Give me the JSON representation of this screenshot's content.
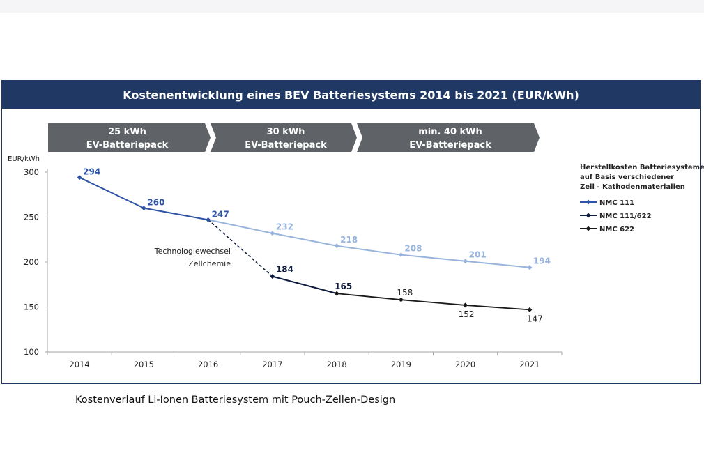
{
  "title": "Kostenentwicklung eines BEV Batteriesystems 2014 bis 2021 (EUR/kWh)",
  "caption": "Kostenverlauf Li-Ionen Batteriesystem mit Pouch-Zellen-Design",
  "colors": {
    "title_bg": "#1f3864",
    "chevron": "#5f6368",
    "nmc111": "#2e54a6",
    "nmc111_622": "#0f1c3d",
    "nmc622": "#1a1a1a",
    "light_series": "#98b4dc",
    "axis": "#a6a6a6"
  },
  "chevrons": [
    {
      "line1": "25 kWh",
      "line2": "EV-Batteriepack"
    },
    {
      "line1": "30 kWh",
      "line2": "EV-Batteriepack"
    },
    {
      "line1": "min. 40 kWh",
      "line2": "EV-Batteriepack"
    }
  ],
  "annotation": {
    "line1": "Technologiewechsel",
    "line2": "Zellchemie"
  },
  "legend": {
    "title_lines": [
      "Herstellkosten Batteriesysteme",
      " auf Basis verschiedener",
      "Zell - Kathodenmaterialien"
    ],
    "items": [
      "NMC 111",
      "NMC 111/622",
      "NMC 622"
    ]
  },
  "chart_data": {
    "type": "line",
    "ylabel": "EUR/kWh",
    "ylim": [
      100,
      300
    ],
    "yticks": [
      100,
      150,
      200,
      250,
      300
    ],
    "categories": [
      "2014",
      "2015",
      "2016",
      "2017",
      "2018",
      "2019",
      "2020",
      "2021"
    ],
    "series": [
      {
        "name": "NMC 111",
        "values": [
          294,
          260,
          247,
          232,
          218,
          208,
          201,
          194
        ]
      },
      {
        "name": "NMC 111/622",
        "values": [
          null,
          null,
          247,
          184,
          165,
          null,
          null,
          null
        ]
      },
      {
        "name": "NMC 622",
        "values": [
          null,
          null,
          null,
          null,
          165,
          158,
          152,
          147
        ]
      }
    ],
    "grid": false,
    "legend_position": "right"
  }
}
